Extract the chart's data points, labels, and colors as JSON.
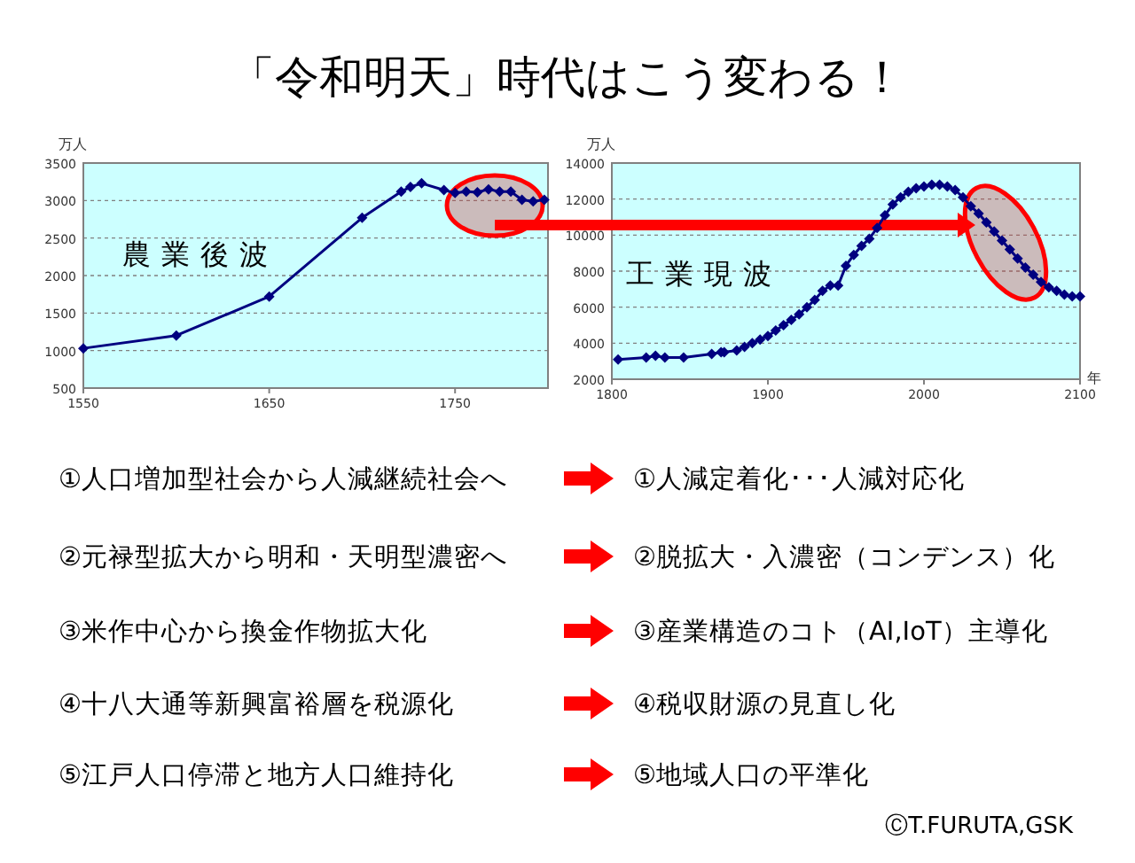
{
  "chart_data": [
    {
      "type": "other",
      "title": "「令和明天」時代はこう変わる！",
      "annotations": [
        "①人口増加型社会から人減継続社会へ",
        "①人減定着化･･･人減対応化",
        "②元禄型拡大から明和・天明型濃密へ",
        "②脱拡大・入濃密（コンデンス）化",
        "③米作中心から換金作物拡大化",
        "③産業構造のコト（AI,IoT）主導化",
        "④十八大通等新興富裕層を税源化",
        "④税収財源の見直し化",
        "⑤江戸人口停滞と地方人口維持化",
        "⑤地域人口の平準化",
        "ⒸT.FURUTA,GSK"
      ]
    },
    {
      "type": "line",
      "ylabel": "万人",
      "annotations": [
        "農業後波"
      ],
      "xlim": [
        1550,
        1800
      ],
      "ylim": [
        500,
        3500
      ],
      "xticks": [
        1550,
        1650,
        1750
      ],
      "yticks": [
        500,
        1000,
        1500,
        2000,
        2500,
        3000,
        3500
      ],
      "grid": "y",
      "marker": "diamond",
      "line_style": "solid",
      "series": [
        {
          "color": "#000080",
          "x": [
            1550,
            1600,
            1650,
            1700,
            1721,
            1726,
            1732,
            1744,
            1750,
            1756,
            1762,
            1768,
            1774,
            1780,
            1786,
            1792,
            1798
          ],
          "values": [
            1030,
            1200,
            1720,
            2770,
            3120,
            3180,
            3230,
            3140,
            3100,
            3120,
            3110,
            3150,
            3120,
            3120,
            3010,
            2990,
            3010
          ]
        }
      ]
    },
    {
      "type": "line",
      "ylabel": "万人",
      "xlabel": "年",
      "annotations": [
        "工業現波"
      ],
      "xlim": [
        1800,
        2100
      ],
      "ylim": [
        2000,
        14000
      ],
      "xticks": [
        1800,
        1900,
        2000,
        2100
      ],
      "yticks": [
        2000,
        4000,
        6000,
        8000,
        10000,
        12000,
        14000
      ],
      "grid": "y",
      "marker": "diamond",
      "line_style": "solid",
      "series": [
        {
          "color": "#000080",
          "x": [
            1804,
            1822,
            1828,
            1834,
            1846,
            1864,
            1870,
            1872,
            1880,
            1885,
            1890,
            1895,
            1900,
            1905,
            1910,
            1915,
            1920,
            1925,
            1930,
            1935,
            1940,
            1945,
            1950,
            1955,
            1960,
            1965,
            1970,
            1975,
            1980,
            1985,
            1990,
            1995,
            2000,
            2005,
            2010,
            2015,
            2020,
            2025,
            2030,
            2035,
            2040,
            2045,
            2050,
            2055,
            2060,
            2065,
            2070,
            2075,
            2080,
            2085,
            2090,
            2095,
            2100
          ],
          "values": [
            3100,
            3200,
            3300,
            3200,
            3200,
            3400,
            3500,
            3500,
            3600,
            3800,
            4000,
            4200,
            4400,
            4700,
            5000,
            5300,
            5600,
            6000,
            6400,
            6900,
            7200,
            7200,
            8300,
            8900,
            9400,
            9800,
            10400,
            11100,
            11700,
            12100,
            12400,
            12600,
            12700,
            12800,
            12800,
            12700,
            12500,
            12100,
            11600,
            11200,
            10700,
            10200,
            9700,
            9200,
            8700,
            8200,
            7800,
            7400,
            7100,
            6900,
            6700,
            6600,
            6600
          ]
        }
      ]
    }
  ]
}
